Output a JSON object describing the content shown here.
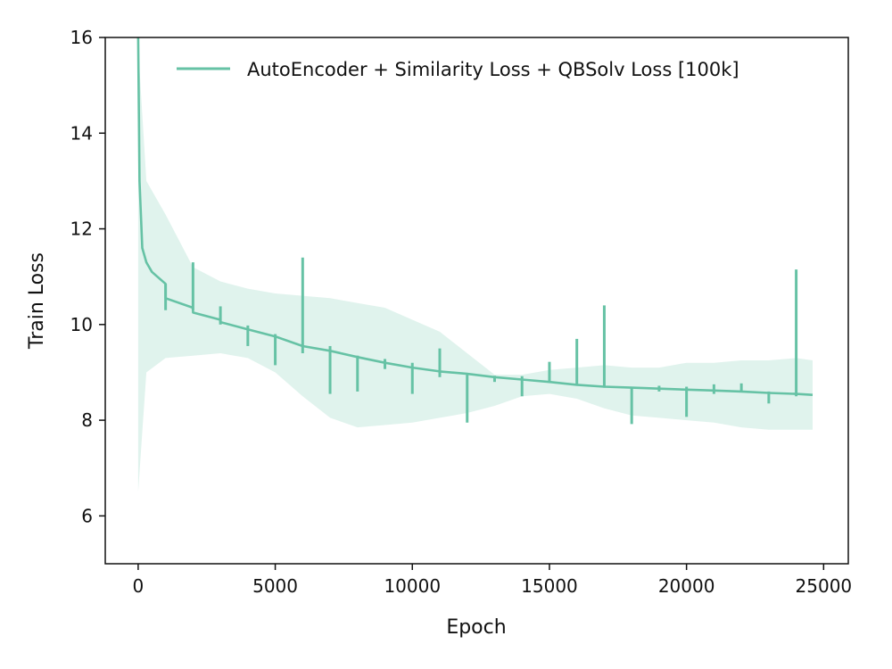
{
  "chart_data": {
    "type": "line",
    "title": "",
    "xlabel": "Epoch",
    "ylabel": "Train Loss",
    "xlim": [
      -1200,
      25900
    ],
    "ylim": [
      5,
      16
    ],
    "xticks": [
      0,
      5000,
      10000,
      15000,
      20000,
      25000
    ],
    "xtick_labels": [
      "0",
      "5000",
      "10000",
      "15000",
      "20000",
      "25000"
    ],
    "yticks": [
      6,
      8,
      10,
      12,
      14,
      16
    ],
    "ytick_labels": [
      "6",
      "8",
      "10",
      "12",
      "14",
      "16"
    ],
    "grid": false,
    "legend_position": "top-right",
    "series": [
      {
        "name": "AutoEncoder + Similarity Loss + QBSolv Loss [100k]",
        "color": "#66c2a5",
        "x": [
          0,
          50,
          150,
          300,
          500,
          700,
          999,
          1000,
          1999,
          2000,
          2999,
          3000,
          4000,
          5000,
          6000,
          7000,
          8000,
          9000,
          10000,
          11000,
          12000,
          13000,
          14000,
          15000,
          16000,
          17000,
          18000,
          19000,
          20000,
          21000,
          22000,
          23000,
          24000,
          24600
        ],
        "y": [
          16.0,
          13.0,
          11.6,
          11.3,
          11.1,
          11.0,
          10.85,
          10.55,
          10.35,
          10.25,
          10.1,
          10.05,
          9.9,
          9.75,
          9.55,
          9.45,
          9.32,
          9.2,
          9.1,
          9.02,
          8.97,
          8.9,
          8.85,
          8.8,
          8.74,
          8.7,
          8.68,
          8.66,
          8.64,
          8.62,
          8.6,
          8.57,
          8.55,
          8.53
        ],
        "spikes": [
          {
            "x": 1000,
            "y_low": 10.3,
            "y_high": 10.85
          },
          {
            "x": 2000,
            "y_low": 10.3,
            "y_high": 11.3
          },
          {
            "x": 3000,
            "y_low": 10.0,
            "y_high": 10.38
          },
          {
            "x": 4000,
            "y_low": 9.55,
            "y_high": 9.98
          },
          {
            "x": 5000,
            "y_low": 9.15,
            "y_high": 9.8
          },
          {
            "x": 6000,
            "y_low": 9.4,
            "y_high": 11.4
          },
          {
            "x": 7000,
            "y_low": 8.55,
            "y_high": 9.55
          },
          {
            "x": 8000,
            "y_low": 8.6,
            "y_high": 9.35
          },
          {
            "x": 9000,
            "y_low": 9.07,
            "y_high": 9.28
          },
          {
            "x": 10000,
            "y_low": 8.55,
            "y_high": 9.2
          },
          {
            "x": 11000,
            "y_low": 8.9,
            "y_high": 9.5
          },
          {
            "x": 12000,
            "y_low": 7.95,
            "y_high": 8.95
          },
          {
            "x": 13000,
            "y_low": 8.8,
            "y_high": 8.93
          },
          {
            "x": 14000,
            "y_low": 8.5,
            "y_high": 8.92
          },
          {
            "x": 15000,
            "y_low": 8.78,
            "y_high": 9.22
          },
          {
            "x": 16000,
            "y_low": 8.72,
            "y_high": 9.7
          },
          {
            "x": 17000,
            "y_low": 8.68,
            "y_high": 10.4
          },
          {
            "x": 18000,
            "y_low": 7.92,
            "y_high": 8.7
          },
          {
            "x": 19000,
            "y_low": 8.6,
            "y_high": 8.72
          },
          {
            "x": 20000,
            "y_low": 8.07,
            "y_high": 8.7
          },
          {
            "x": 21000,
            "y_low": 8.55,
            "y_high": 8.75
          },
          {
            "x": 22000,
            "y_low": 8.58,
            "y_high": 8.77
          },
          {
            "x": 23000,
            "y_low": 8.35,
            "y_high": 8.6
          },
          {
            "x": 24000,
            "y_low": 8.5,
            "y_high": 11.15
          }
        ],
        "band": {
          "x": [
            0,
            300,
            1000,
            2000,
            3000,
            4000,
            5000,
            6000,
            7000,
            8000,
            9000,
            10000,
            11000,
            12000,
            13000,
            14000,
            15000,
            16000,
            17000,
            18000,
            19000,
            20000,
            21000,
            22000,
            23000,
            24000,
            24600
          ],
          "upper": [
            15.8,
            13.0,
            12.3,
            11.2,
            10.9,
            10.75,
            10.65,
            10.6,
            10.55,
            10.45,
            10.35,
            10.1,
            9.85,
            9.4,
            8.95,
            8.95,
            9.05,
            9.1,
            9.15,
            9.1,
            9.1,
            9.2,
            9.2,
            9.25,
            9.25,
            9.3,
            9.25
          ],
          "lower": [
            6.5,
            9.0,
            9.3,
            9.35,
            9.4,
            9.3,
            9.0,
            8.5,
            8.05,
            7.85,
            7.9,
            7.95,
            8.05,
            8.15,
            8.3,
            8.5,
            8.55,
            8.45,
            8.25,
            8.1,
            8.05,
            8.0,
            7.95,
            7.85,
            7.8,
            7.8,
            7.8
          ]
        }
      }
    ]
  }
}
